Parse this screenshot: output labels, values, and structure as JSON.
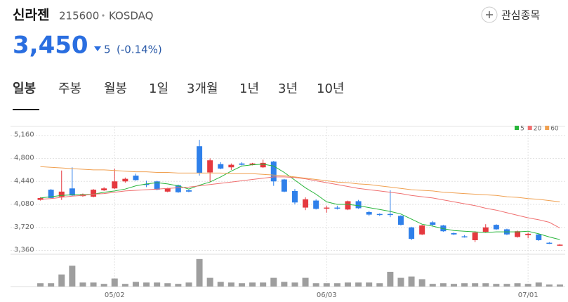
{
  "header": {
    "name": "신라젠",
    "code": "215600",
    "market": "KOSDAQ",
    "price": "3,450",
    "change": "5",
    "change_pct": "(-0.14%)",
    "watch": "관심종목"
  },
  "tabs": [
    "일봉",
    "주봉",
    "월봉",
    "1일",
    "3개월",
    "1년",
    "3년",
    "10년"
  ],
  "chart_data": {
    "type": "candlestick",
    "categories": [
      null,
      null,
      null,
      null,
      null,
      null,
      null,
      "05/02",
      null,
      null,
      null,
      null,
      null,
      null,
      null,
      null,
      null,
      null,
      null,
      null,
      null,
      null,
      null,
      null,
      null,
      null,
      null,
      "06/03",
      null,
      null,
      null,
      null,
      null,
      null,
      null,
      null,
      null,
      null,
      null,
      null,
      null,
      null,
      null,
      null,
      null,
      null,
      "07/01",
      null,
      null,
      null
    ],
    "open": [
      4150,
      4310,
      4200,
      4330,
      4210,
      4200,
      4300,
      4330,
      4440,
      4530,
      4400,
      4440,
      4280,
      4380,
      4300,
      4990,
      4580,
      4710,
      4660,
      4720,
      4700,
      4660,
      4750,
      4470,
      4290,
      4030,
      4140,
      4020,
      4030,
      4000,
      4130,
      3960,
      3930,
      3930,
      3900,
      3720,
      3610,
      3800,
      3750,
      3630,
      3580,
      3520,
      3650,
      3760,
      3690,
      3570,
      3600,
      3610,
      3480,
      3440
    ],
    "high": [
      4190,
      4320,
      4610,
      4660,
      4250,
      4320,
      4350,
      4640,
      4500,
      4560,
      4450,
      4450,
      4340,
      4390,
      4310,
      5090,
      4800,
      4740,
      4720,
      4740,
      4730,
      4780,
      4760,
      4480,
      4320,
      4190,
      4160,
      4060,
      4060,
      4140,
      4150,
      3980,
      3940,
      4300,
      3910,
      3730,
      3760,
      3820,
      3760,
      3640,
      3600,
      3660,
      3770,
      3770,
      3700,
      3670,
      3640,
      3620,
      3490,
      3460
    ],
    "low": [
      4140,
      4170,
      4150,
      4210,
      4200,
      4190,
      4290,
      4320,
      4420,
      4450,
      4350,
      4300,
      4270,
      4260,
      4270,
      4530,
      4430,
      4630,
      4620,
      4690,
      4690,
      4650,
      4370,
      4270,
      4080,
      3990,
      4000,
      3950,
      4000,
      3990,
      4010,
      3900,
      3900,
      3880,
      3750,
      3520,
      3600,
      3740,
      3650,
      3600,
      3560,
      3490,
      3640,
      3680,
      3600,
      3560,
      3550,
      3510,
      3460,
      3430
    ],
    "close": [
      4180,
      4180,
      4280,
      4220,
      4240,
      4310,
      4330,
      4440,
      4480,
      4460,
      4390,
      4310,
      4330,
      4270,
      4280,
      4570,
      4770,
      4640,
      4700,
      4700,
      4720,
      4730,
      4440,
      4280,
      4110,
      4160,
      4010,
      4030,
      4020,
      4130,
      4020,
      3920,
      3920,
      3920,
      3760,
      3540,
      3750,
      3760,
      3660,
      3610,
      3570,
      3640,
      3720,
      3690,
      3610,
      3660,
      3620,
      3520,
      3470,
      3450
    ],
    "up_color": "#e5393f",
    "down_color": "#2f80ea",
    "ylim": [
      3300,
      5300
    ],
    "yticks": [
      {
        "value": 5160,
        "label": "5,160"
      },
      {
        "value": 4800,
        "label": "4,800"
      },
      {
        "value": 4440,
        "label": "4,440"
      },
      {
        "value": 4080,
        "label": "4,080"
      },
      {
        "value": 3720,
        "label": "3,720"
      },
      {
        "value": 3360,
        "label": "3,360"
      }
    ],
    "grid": true,
    "moving_averages": [
      {
        "name": "5",
        "color": "#27b53a",
        "values": [
          4180,
          4200,
          4220,
          4230,
          4230,
          4240,
          4270,
          4290,
          4320,
          4370,
          4400,
          4420,
          4400,
          4370,
          4320,
          4380,
          4430,
          4510,
          4600,
          4680,
          4700,
          4710,
          4680,
          4580,
          4460,
          4340,
          4240,
          4120,
          4080,
          4080,
          4060,
          4030,
          4000,
          3970,
          3930,
          3850,
          3770,
          3740,
          3700,
          3670,
          3660,
          3650,
          3640,
          3650,
          3650,
          3650,
          3660,
          3620,
          3570,
          3530
        ]
      },
      {
        "name": "20",
        "color": "#f07070",
        "values": [
          4160,
          4170,
          4190,
          4210,
          4220,
          4240,
          4250,
          4270,
          4290,
          4300,
          4310,
          4320,
          4330,
          4340,
          4350,
          4370,
          4390,
          4410,
          4430,
          4450,
          4470,
          4490,
          4510,
          4510,
          4500,
          4480,
          4450,
          4420,
          4390,
          4360,
          4330,
          4310,
          4290,
          4270,
          4250,
          4220,
          4200,
          4180,
          4150,
          4120,
          4090,
          4060,
          4020,
          3990,
          3950,
          3910,
          3870,
          3840,
          3800,
          3710
        ]
      },
      {
        "name": "60",
        "color": "#f0a050",
        "values": [
          4670,
          4660,
          4650,
          4640,
          4630,
          4620,
          4620,
          4610,
          4600,
          4590,
          4590,
          4580,
          4580,
          4570,
          4570,
          4570,
          4570,
          4570,
          4560,
          4560,
          4560,
          4550,
          4540,
          4530,
          4510,
          4490,
          4470,
          4450,
          4430,
          4420,
          4400,
          4390,
          4370,
          4350,
          4330,
          4310,
          4300,
          4290,
          4270,
          4260,
          4250,
          4240,
          4230,
          4220,
          4200,
          4190,
          4170,
          4160,
          4140,
          4120
        ]
      }
    ],
    "volume": {
      "color": "#9e9e9e",
      "ylim": [
        0,
        45
      ],
      "values": [
        5,
        5,
        18,
        31,
        6,
        6,
        4,
        12,
        4,
        7,
        6,
        6,
        5,
        4,
        6,
        41,
        13,
        7,
        6,
        5,
        6,
        6,
        13,
        7,
        6,
        13,
        5,
        5,
        5,
        6,
        6,
        6,
        5,
        22,
        13,
        15,
        11,
        4,
        5,
        4,
        5,
        5,
        5,
        4,
        4,
        5,
        4,
        6,
        3,
        3
      ]
    }
  }
}
